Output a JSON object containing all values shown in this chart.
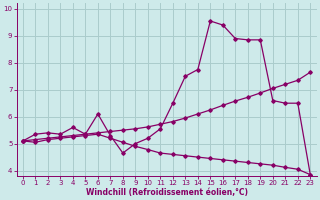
{
  "xlabel": "Windchill (Refroidissement éolien,°C)",
  "xlim": [
    -0.5,
    23.5
  ],
  "ylim": [
    3.8,
    10.2
  ],
  "xticks": [
    0,
    1,
    2,
    3,
    4,
    5,
    6,
    7,
    8,
    9,
    10,
    11,
    12,
    13,
    14,
    15,
    16,
    17,
    18,
    19,
    20,
    21,
    22,
    23
  ],
  "yticks": [
    4,
    5,
    6,
    7,
    8,
    9,
    10
  ],
  "bg_color": "#ceeaea",
  "line_color": "#880066",
  "grid_color": "#aacccc",
  "series1_x": [
    0,
    1,
    2,
    3,
    4,
    5,
    6,
    7,
    8,
    9,
    10,
    11,
    12,
    13,
    14,
    15,
    16,
    17,
    18,
    19,
    20,
    21,
    22,
    23
  ],
  "series1_y": [
    5.1,
    5.35,
    5.4,
    5.35,
    5.6,
    5.35,
    6.1,
    5.3,
    4.65,
    5.0,
    5.2,
    5.55,
    6.5,
    7.5,
    7.75,
    9.55,
    9.4,
    8.9,
    8.85,
    8.85,
    6.6,
    6.5,
    6.5,
    3.85
  ],
  "series2_x": [
    0,
    1,
    2,
    3,
    4,
    5,
    6,
    7,
    8,
    9,
    10,
    11,
    12,
    13,
    14,
    15,
    16,
    17,
    18,
    19,
    20,
    21,
    22,
    23
  ],
  "series2_y": [
    5.1,
    5.15,
    5.2,
    5.25,
    5.3,
    5.35,
    5.4,
    5.45,
    5.5,
    5.55,
    5.62,
    5.72,
    5.82,
    5.95,
    6.1,
    6.25,
    6.42,
    6.58,
    6.72,
    6.88,
    7.05,
    7.2,
    7.35,
    7.65
  ],
  "series3_x": [
    0,
    1,
    2,
    3,
    4,
    5,
    6,
    7,
    8,
    9,
    10,
    11,
    12,
    13,
    14,
    15,
    16,
    17,
    18,
    19,
    20,
    21,
    22,
    23
  ],
  "series3_y": [
    5.1,
    5.05,
    5.15,
    5.2,
    5.25,
    5.3,
    5.35,
    5.2,
    5.05,
    4.9,
    4.78,
    4.65,
    4.6,
    4.55,
    4.5,
    4.45,
    4.4,
    4.35,
    4.3,
    4.25,
    4.2,
    4.12,
    4.05,
    3.85
  ],
  "marker": "D",
  "markersize": 1.8,
  "linewidth": 0.9,
  "tick_fontsize": 5.0,
  "xlabel_fontsize": 5.5
}
